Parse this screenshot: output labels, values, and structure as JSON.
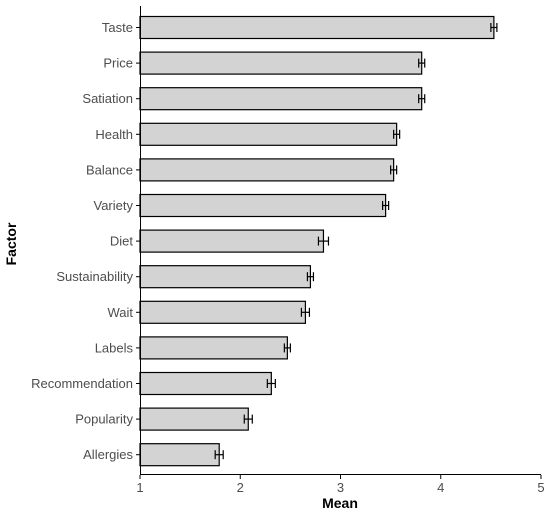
{
  "chart_data": {
    "type": "bar",
    "orientation": "horizontal",
    "xlabel": "Mean",
    "ylabel": "Factor",
    "xlim": [
      1,
      5
    ],
    "xticks": [
      1,
      2,
      3,
      4,
      5
    ],
    "grid": false,
    "legend": "none",
    "categories": [
      "Taste",
      "Price",
      "Satiation",
      "Health",
      "Balance",
      "Variety",
      "Diet",
      "Sustainability",
      "Wait",
      "Labels",
      "Recommendation",
      "Popularity",
      "Allergies"
    ],
    "values": [
      4.53,
      3.81,
      3.81,
      3.56,
      3.53,
      3.45,
      2.83,
      2.7,
      2.65,
      2.47,
      2.31,
      2.08,
      1.79
    ],
    "errors": [
      0.03,
      0.03,
      0.03,
      0.03,
      0.03,
      0.03,
      0.05,
      0.03,
      0.04,
      0.03,
      0.04,
      0.04,
      0.04
    ],
    "colors": {
      "bar_fill": "#d3d3d3",
      "bar_stroke": "#000000",
      "error_bar": "#000000",
      "axis": "#000000"
    }
  }
}
